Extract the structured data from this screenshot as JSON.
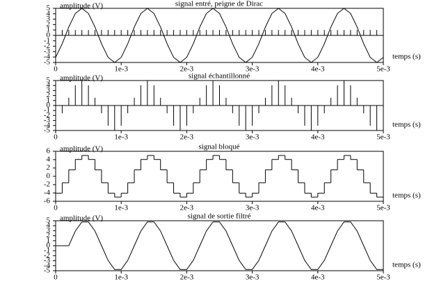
{
  "chart_data": [
    {
      "type": "line",
      "title": "signal entré, peigne de Dirac",
      "ylabel": "amplitude (V)",
      "xlabel": "temps (s)",
      "x": [
        0,
        0.0001,
        0.0002,
        0.0003,
        0.0004,
        0.0005,
        0.0006,
        0.0007,
        0.0008,
        0.0009,
        0.001,
        0.0011,
        0.0012,
        0.0013,
        0.0014,
        0.0015,
        0.0016,
        0.0017,
        0.0018,
        0.0019,
        0.002,
        0.0021,
        0.0022,
        0.0023,
        0.0024,
        0.0025,
        0.0026,
        0.0027,
        0.0028,
        0.0029,
        0.003,
        0.0031,
        0.0032,
        0.0033,
        0.0034,
        0.0035,
        0.0036,
        0.0037,
        0.0038,
        0.0039,
        0.004,
        0.0041,
        0.0042,
        0.0043,
        0.0044,
        0.0045,
        0.0046,
        0.0047,
        0.0048,
        0.0049,
        0.005
      ],
      "series": [
        {
          "color": "#000000",
          "values": [
            -4.05,
            -1.55,
            1.55,
            4.05,
            5,
            4.05,
            1.55,
            -1.55,
            -4.05,
            -5,
            -4.05,
            -1.55,
            1.55,
            4.05,
            5,
            4.05,
            1.55,
            -1.55,
            -4.05,
            -5,
            -4.05,
            -1.55,
            1.55,
            4.05,
            5,
            4.05,
            1.55,
            -1.55,
            -4.05,
            -5,
            -4.05,
            -1.55,
            1.55,
            4.05,
            5,
            4.05,
            1.55,
            -1.55,
            -4.05,
            -5,
            -4.05,
            -1.55,
            1.55,
            4.05,
            5,
            4.05,
            1.55,
            -1.55,
            -4.05,
            -5,
            -4.05
          ]
        },
        {
          "color": "#000000",
          "type": "stem",
          "values": [
            1,
            1,
            1,
            1,
            1,
            1,
            1,
            1,
            1,
            1,
            1,
            1,
            1,
            1,
            1,
            1,
            1,
            1,
            1,
            1,
            1,
            1,
            1,
            1,
            1,
            1,
            1,
            1,
            1,
            1,
            1,
            1,
            1,
            1,
            1,
            1,
            1,
            1,
            1,
            1,
            1,
            1,
            1,
            1,
            1,
            1,
            1,
            1,
            1,
            1,
            1
          ]
        }
      ],
      "xlim": [
        0,
        0.005
      ],
      "ylim": [
        -5,
        5
      ],
      "xticks": [
        0,
        {
          "value": 0.001,
          "label": "1e-3"
        },
        {
          "value": 0.002,
          "label": "2e-3"
        },
        {
          "value": 0.003,
          "label": "3e-3"
        },
        {
          "value": 0.004,
          "label": "4e-3"
        },
        {
          "value": 0.005,
          "label": "5e-3"
        }
      ],
      "yticks": [
        -5,
        -4,
        -3,
        -2,
        -1,
        0,
        1,
        2,
        3,
        4,
        5
      ]
    },
    {
      "type": "stem",
      "title": "signal échantillonné",
      "ylabel": "amplitude (V)",
      "xlabel": "temps (s)",
      "x": [
        0,
        0.0001,
        0.0002,
        0.0003,
        0.0004,
        0.0005,
        0.0006,
        0.0007,
        0.0008,
        0.0009,
        0.001,
        0.0011,
        0.0012,
        0.0013,
        0.0014,
        0.0015,
        0.0016,
        0.0017,
        0.0018,
        0.0019,
        0.002,
        0.0021,
        0.0022,
        0.0023,
        0.0024,
        0.0025,
        0.0026,
        0.0027,
        0.0028,
        0.0029,
        0.003,
        0.0031,
        0.0032,
        0.0033,
        0.0034,
        0.0035,
        0.0036,
        0.0037,
        0.0038,
        0.0039,
        0.004,
        0.0041,
        0.0042,
        0.0043,
        0.0044,
        0.0045,
        0.0046,
        0.0047,
        0.0048,
        0.0049,
        0.005
      ],
      "series": [
        {
          "color": "#000000",
          "values": [
            -4.05,
            -1.55,
            1.55,
            4.05,
            5,
            4.05,
            1.55,
            -1.55,
            -4.05,
            -5,
            -4.05,
            -1.55,
            1.55,
            4.05,
            5,
            4.05,
            1.55,
            -1.55,
            -4.05,
            -5,
            -4.05,
            -1.55,
            1.55,
            4.05,
            5,
            4.05,
            1.55,
            -1.55,
            -4.05,
            -5,
            -4.05,
            -1.55,
            1.55,
            4.05,
            5,
            4.05,
            1.55,
            -1.55,
            -4.05,
            -5,
            -4.05,
            -1.55,
            1.55,
            4.05,
            5,
            4.05,
            1.55,
            -1.55,
            -4.05,
            -5,
            -4.05
          ]
        }
      ],
      "xlim": [
        0,
        0.005
      ],
      "ylim": [
        -5,
        5
      ],
      "xticks": [
        0,
        {
          "value": 0.001,
          "label": "1e-3"
        },
        {
          "value": 0.002,
          "label": "2e-3"
        },
        {
          "value": 0.003,
          "label": "3e-3"
        },
        {
          "value": 0.004,
          "label": "4e-3"
        },
        {
          "value": 0.005,
          "label": "5e-3"
        }
      ],
      "yticks": [
        -5,
        -4,
        -3,
        -2,
        -1,
        0,
        1,
        2,
        3,
        4,
        5
      ]
    },
    {
      "type": "step",
      "title": "signal bloqué",
      "ylabel": "amplitude (V)",
      "xlabel": "temps (s)",
      "x": [
        0,
        0.0001,
        0.0002,
        0.0003,
        0.0004,
        0.0005,
        0.0006,
        0.0007,
        0.0008,
        0.0009,
        0.001,
        0.0011,
        0.0012,
        0.0013,
        0.0014,
        0.0015,
        0.0016,
        0.0017,
        0.0018,
        0.0019,
        0.002,
        0.0021,
        0.0022,
        0.0023,
        0.0024,
        0.0025,
        0.0026,
        0.0027,
        0.0028,
        0.0029,
        0.003,
        0.0031,
        0.0032,
        0.0033,
        0.0034,
        0.0035,
        0.0036,
        0.0037,
        0.0038,
        0.0039,
        0.004,
        0.0041,
        0.0042,
        0.0043,
        0.0044,
        0.0045,
        0.0046,
        0.0047,
        0.0048,
        0.0049,
        0.005
      ],
      "series": [
        {
          "color": "#000000",
          "values": [
            -4.05,
            -1.55,
            1.55,
            4.05,
            5,
            4.05,
            1.55,
            -1.55,
            -4.05,
            -5,
            -4.05,
            -1.55,
            1.55,
            4.05,
            5,
            4.05,
            1.55,
            -1.55,
            -4.05,
            -5,
            -4.05,
            -1.55,
            1.55,
            4.05,
            5,
            4.05,
            1.55,
            -1.55,
            -4.05,
            -5,
            -4.05,
            -1.55,
            1.55,
            4.05,
            5,
            4.05,
            1.55,
            -1.55,
            -4.05,
            -5,
            -4.05,
            -1.55,
            1.55,
            4.05,
            5,
            4.05,
            1.55,
            -1.55,
            -4.05,
            -5,
            -4.05
          ]
        }
      ],
      "xlim": [
        0,
        0.005
      ],
      "ylim": [
        -6,
        6
      ],
      "xticks": [
        0,
        {
          "value": 0.001,
          "label": "1e-3"
        },
        {
          "value": 0.002,
          "label": "2e-3"
        },
        {
          "value": 0.003,
          "label": "3e-3"
        },
        {
          "value": 0.004,
          "label": "4e-3"
        },
        {
          "value": 0.005,
          "label": "5e-3"
        }
      ],
      "yticks": [
        -6,
        -4,
        -2,
        0,
        2,
        4,
        6
      ]
    },
    {
      "type": "line",
      "title": "signal de sortie filtré",
      "ylabel": "amplitude (V)",
      "xlabel": "temps (s)",
      "x": [
        0,
        0.0001,
        0.0002,
        0.0003,
        0.0004,
        0.0005,
        0.0006,
        0.0007,
        0.0008,
        0.0009,
        0.001,
        0.0011,
        0.0012,
        0.0013,
        0.0014,
        0.0015,
        0.0016,
        0.0017,
        0.0018,
        0.0019,
        0.002,
        0.0021,
        0.0022,
        0.0023,
        0.0024,
        0.0025,
        0.0026,
        0.0027,
        0.0028,
        0.0029,
        0.003,
        0.0031,
        0.0032,
        0.0033,
        0.0034,
        0.0035,
        0.0036,
        0.0037,
        0.0038,
        0.0039,
        0.004,
        0.0041,
        0.0042,
        0.0043,
        0.0044,
        0.0045,
        0.0046,
        0.0047,
        0.0048,
        0.0049,
        0.005
      ],
      "series": [
        {
          "color": "#000000",
          "values": [
            0,
            0,
            0,
            2.94,
            4.76,
            4.76,
            2.94,
            0,
            -2.94,
            -4.76,
            -4.76,
            -2.94,
            0,
            2.94,
            4.76,
            4.76,
            2.94,
            0,
            -2.94,
            -4.76,
            -4.76,
            -2.94,
            0,
            2.94,
            4.76,
            4.76,
            2.94,
            0,
            -2.94,
            -4.76,
            -4.76,
            -2.94,
            0,
            2.94,
            4.76,
            4.76,
            2.94,
            0,
            -2.94,
            -4.76,
            -4.76,
            -2.94,
            0,
            2.94,
            4.76,
            4.76,
            2.94,
            0,
            -2.94,
            -4.76,
            -4.76
          ]
        }
      ],
      "xlim": [
        0,
        0.005
      ],
      "ylim": [
        -5,
        5
      ],
      "xticks": [
        0,
        {
          "value": 0.001,
          "label": "1e-3"
        },
        {
          "value": 0.002,
          "label": "2e-3"
        },
        {
          "value": 0.003,
          "label": "3e-3"
        },
        {
          "value": 0.004,
          "label": "4e-3"
        },
        {
          "value": 0.005,
          "label": "5e-3"
        }
      ],
      "yticks": [
        -5,
        -4,
        -3,
        -2,
        -1,
        0,
        1,
        2,
        3,
        4,
        5
      ]
    }
  ]
}
